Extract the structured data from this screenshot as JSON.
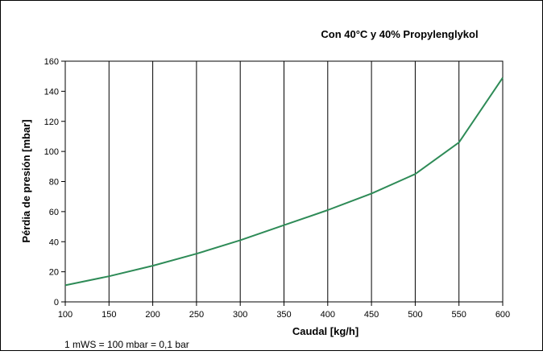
{
  "chart_data": {
    "type": "line",
    "title": "Con  40°C y 40% Propylenglykol",
    "xlabel": "Caudal  [kg/h]",
    "ylabel": "Pérdia de presión  [mbar]",
    "xlim": [
      100,
      600
    ],
    "ylim": [
      0,
      160
    ],
    "x_ticks": [
      100,
      150,
      200,
      250,
      300,
      350,
      400,
      450,
      500,
      550,
      600
    ],
    "y_ticks": [
      0,
      20,
      40,
      60,
      80,
      100,
      120,
      140,
      160
    ],
    "grid": "vertical",
    "series": [
      {
        "color": "#2e8b57",
        "x": [
          100,
          150,
          200,
          250,
          300,
          350,
          400,
          450,
          500,
          550,
          600
        ],
        "y": [
          11,
          17,
          24,
          32,
          41,
          51,
          61,
          72,
          85,
          106,
          149
        ]
      }
    ],
    "annotation": "1 mWS = 100 mbar = 0,1 bar"
  }
}
